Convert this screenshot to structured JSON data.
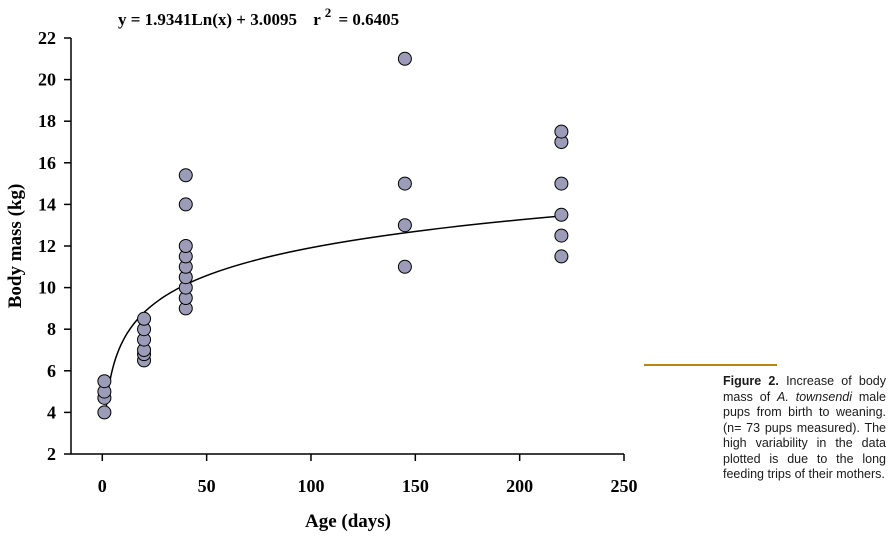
{
  "chart_data": {
    "type": "scatter",
    "title": "y = 1.9341Ln(x) + 3.0095",
    "r2_label": "r",
    "r2_exp": "2",
    "r2_value": "= 0.6405",
    "xlabel": "Age (days)",
    "ylabel": "Body mass (kg)",
    "xlim": [
      -15,
      250
    ],
    "ylim": [
      2,
      22
    ],
    "xticks": [
      0,
      50,
      100,
      150,
      200,
      250
    ],
    "yticks": [
      2,
      4,
      6,
      8,
      10,
      12,
      14,
      16,
      18,
      20,
      22
    ],
    "series": [
      {
        "name": "Body mass",
        "points": [
          [
            1,
            4.0
          ],
          [
            1,
            4.7
          ],
          [
            1,
            5.0
          ],
          [
            1,
            5.5
          ],
          [
            20,
            6.5
          ],
          [
            20,
            6.8
          ],
          [
            20,
            7.0
          ],
          [
            20,
            7.5
          ],
          [
            20,
            8.0
          ],
          [
            20,
            8.5
          ],
          [
            40,
            9.0
          ],
          [
            40,
            9.5
          ],
          [
            40,
            10.0
          ],
          [
            40,
            10.5
          ],
          [
            40,
            11.0
          ],
          [
            40,
            11.5
          ],
          [
            40,
            12.0
          ],
          [
            40,
            14.0
          ],
          [
            40,
            15.4
          ],
          [
            145,
            11.0
          ],
          [
            145,
            13.0
          ],
          [
            145,
            15.0
          ],
          [
            145,
            21.0
          ],
          [
            220,
            11.5
          ],
          [
            220,
            12.5
          ],
          [
            220,
            13.5
          ],
          [
            220,
            15.0
          ],
          [
            220,
            17.0
          ],
          [
            220,
            17.5
          ]
        ]
      }
    ],
    "trendline": {
      "type": "logarithmic",
      "a": 1.9341,
      "b": 3.0095,
      "x_range": [
        1.5,
        220
      ]
    }
  },
  "caption": {
    "figure_label": "Figure 2.",
    "text_before": "Increase of body mass of",
    "species": "A. townsendi",
    "text_after": "male pups from birth to weaning. (n= 73 pups measured). The high variability in the data plotted is due to the long feeding trips of their mothers."
  },
  "colors": {
    "marker_fill": "#9c9cb8",
    "marker_stroke": "#000000",
    "rule": "#b8870f"
  }
}
